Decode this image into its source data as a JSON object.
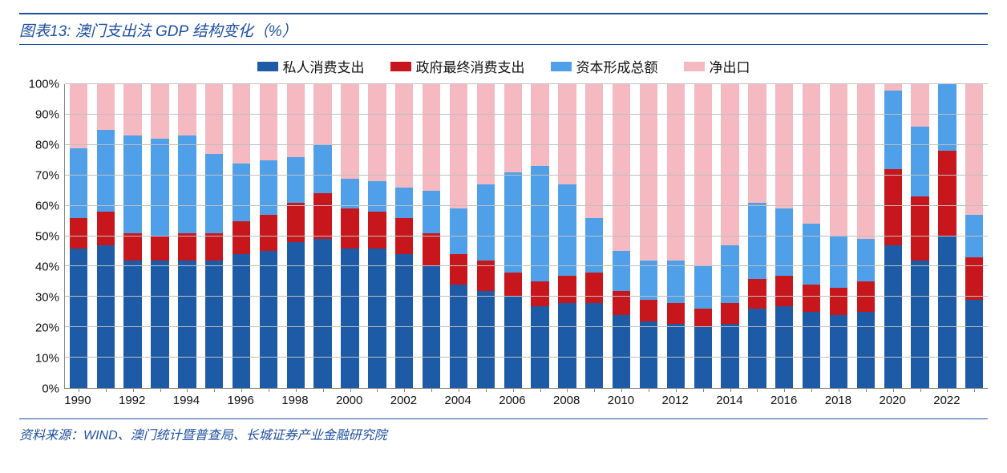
{
  "title": "图表13: 澳门支出法 GDP 结构变化（%）",
  "source": "资料来源：WIND、澳门统计暨普查局、长城证券产业金融研究院",
  "chart": {
    "type": "stacked-bar-100",
    "title_fontsize": 19,
    "title_color": "#1e4fa0",
    "label_fontsize": 15,
    "legend_fontsize": 17,
    "background_color": "#ffffff",
    "grid_color": "#bfbfbf",
    "axis_color": "#8a8a8a",
    "rule_color": "#1e4fa0",
    "rule_weight_top": 2,
    "rule_weight_thin": 1,
    "ylim": [
      0,
      100
    ],
    "ytick_step": 10,
    "y_suffix": "%",
    "series": [
      {
        "key": "private",
        "label": "私人消费支出",
        "color": "#1e5ba6"
      },
      {
        "key": "gov",
        "label": "政府最终消费支出",
        "color": "#c8161d"
      },
      {
        "key": "capital",
        "label": "资本形成总额",
        "color": "#4fa0e8"
      },
      {
        "key": "netexp",
        "label": "净出口",
        "color": "#f4b9c1"
      }
    ],
    "x_tick_labels": [
      "1990",
      "",
      "1992",
      "",
      "1994",
      "",
      "1996",
      "",
      "1998",
      "",
      "2000",
      "",
      "2002",
      "",
      "2004",
      "",
      "2006",
      "",
      "2008",
      "",
      "2010",
      "",
      "2012",
      "",
      "2014",
      "",
      "2016",
      "",
      "2018",
      "",
      "2020",
      "",
      "2022",
      ""
    ],
    "data": [
      {
        "year": 1990,
        "private": 46,
        "gov": 10,
        "capital": 23,
        "netexp": 21
      },
      {
        "year": 1991,
        "private": 47,
        "gov": 11,
        "capital": 27,
        "netexp": 15
      },
      {
        "year": 1992,
        "private": 42,
        "gov": 9,
        "capital": 32,
        "netexp": 17
      },
      {
        "year": 1993,
        "private": 42,
        "gov": 8,
        "capital": 32,
        "netexp": 18
      },
      {
        "year": 1994,
        "private": 42,
        "gov": 9,
        "capital": 32,
        "netexp": 17
      },
      {
        "year": 1995,
        "private": 42,
        "gov": 9,
        "capital": 26,
        "netexp": 23
      },
      {
        "year": 1996,
        "private": 44,
        "gov": 11,
        "capital": 19,
        "netexp": 26
      },
      {
        "year": 1997,
        "private": 45,
        "gov": 12,
        "capital": 18,
        "netexp": 25
      },
      {
        "year": 1998,
        "private": 48,
        "gov": 13,
        "capital": 15,
        "netexp": 24
      },
      {
        "year": 1999,
        "private": 49,
        "gov": 15,
        "capital": 16,
        "netexp": 20
      },
      {
        "year": 2000,
        "private": 46,
        "gov": 13,
        "capital": 10,
        "netexp": 31
      },
      {
        "year": 2001,
        "private": 46,
        "gov": 12,
        "capital": 10,
        "netexp": 32
      },
      {
        "year": 2002,
        "private": 44,
        "gov": 12,
        "capital": 10,
        "netexp": 34
      },
      {
        "year": 2003,
        "private": 40,
        "gov": 11,
        "capital": 14,
        "netexp": 35
      },
      {
        "year": 2004,
        "private": 34,
        "gov": 10,
        "capital": 15,
        "netexp": 41
      },
      {
        "year": 2005,
        "private": 32,
        "gov": 10,
        "capital": 25,
        "netexp": 33
      },
      {
        "year": 2006,
        "private": 30,
        "gov": 8,
        "capital": 33,
        "netexp": 29
      },
      {
        "year": 2007,
        "private": 27,
        "gov": 8,
        "capital": 38,
        "netexp": 27
      },
      {
        "year": 2008,
        "private": 28,
        "gov": 9,
        "capital": 30,
        "netexp": 33
      },
      {
        "year": 2009,
        "private": 28,
        "gov": 10,
        "capital": 18,
        "netexp": 44
      },
      {
        "year": 2010,
        "private": 24,
        "gov": 8,
        "capital": 13,
        "netexp": 55
      },
      {
        "year": 2011,
        "private": 22,
        "gov": 7,
        "capital": 13,
        "netexp": 58
      },
      {
        "year": 2012,
        "private": 21,
        "gov": 7,
        "capital": 14,
        "netexp": 58
      },
      {
        "year": 2013,
        "private": 20,
        "gov": 6,
        "capital": 14,
        "netexp": 60
      },
      {
        "year": 2014,
        "private": 21,
        "gov": 7,
        "capital": 19,
        "netexp": 53
      },
      {
        "year": 2015,
        "private": 26,
        "gov": 10,
        "capital": 25,
        "netexp": 39
      },
      {
        "year": 2016,
        "private": 27,
        "gov": 10,
        "capital": 22,
        "netexp": 41
      },
      {
        "year": 2017,
        "private": 25,
        "gov": 9,
        "capital": 20,
        "netexp": 46
      },
      {
        "year": 2018,
        "private": 24,
        "gov": 9,
        "capital": 17,
        "netexp": 50
      },
      {
        "year": 2019,
        "private": 25,
        "gov": 10,
        "capital": 14,
        "netexp": 51
      },
      {
        "year": 2020,
        "private": 47,
        "gov": 25,
        "capital": 26,
        "netexp": 2
      },
      {
        "year": 2021,
        "private": 42,
        "gov": 21,
        "capital": 23,
        "netexp": 14
      },
      {
        "year": 2022,
        "private": 50,
        "gov": 28,
        "capital": 22,
        "netexp": 0
      },
      {
        "year": 2023,
        "private": 29,
        "gov": 14,
        "capital": 14,
        "netexp": 43
      }
    ]
  }
}
